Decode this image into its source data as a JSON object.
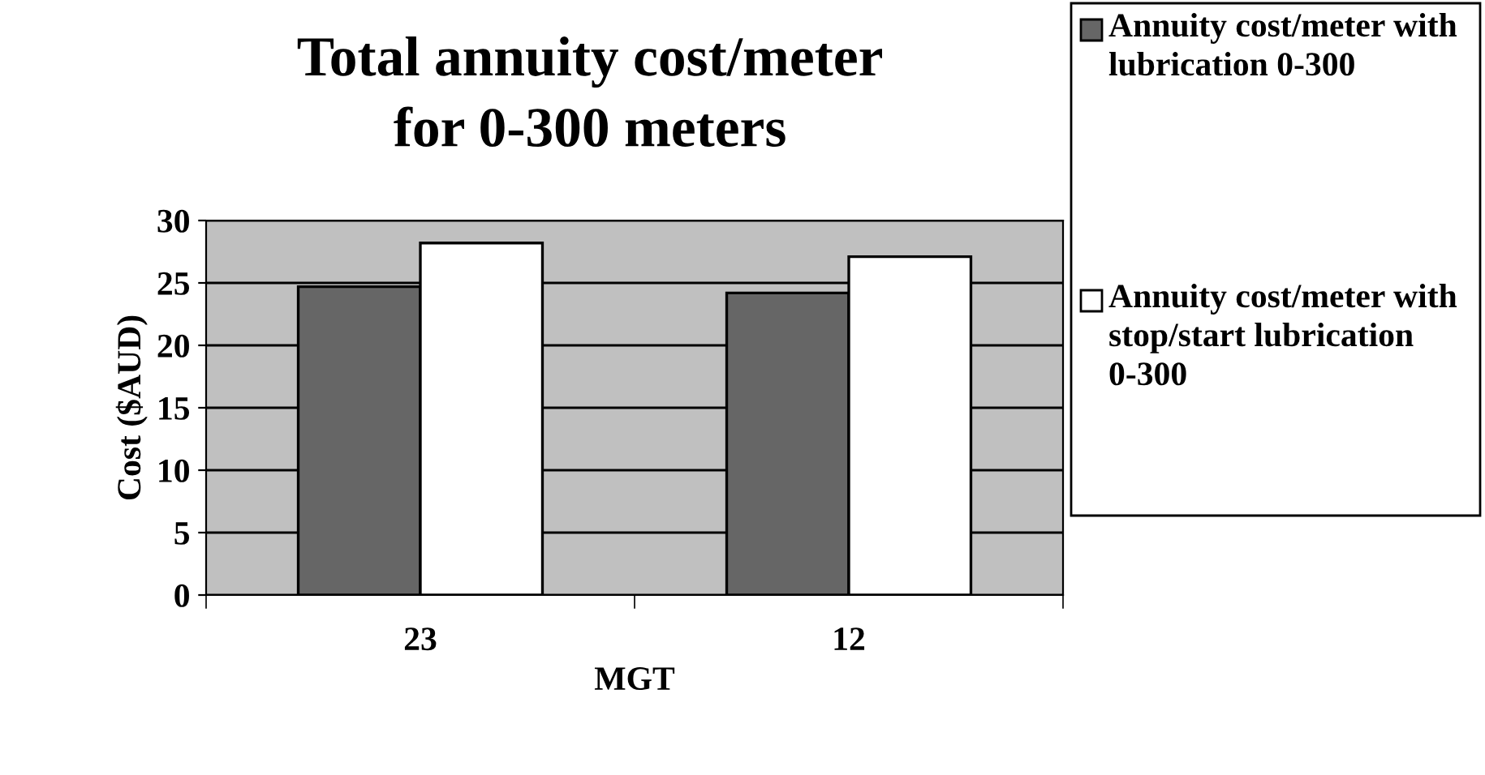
{
  "chart_data": {
    "type": "bar",
    "title": "Total annuity cost/meter\nfor 0-300 meters",
    "xlabel": "MGT",
    "ylabel": "Cost ($AUD)",
    "categories": [
      "23",
      "12"
    ],
    "series": [
      {
        "name": "Annuity cost/meter with lubrication 0-300",
        "color": "#666666",
        "values": [
          24.7,
          24.2
        ]
      },
      {
        "name": "Annuity cost/meter with stop/start lubrication 0-300",
        "color": "#ffffff",
        "values": [
          28.2,
          27.1
        ]
      }
    ],
    "ylim": [
      0,
      30
    ],
    "yticks": [
      0,
      5,
      10,
      15,
      20,
      25,
      30
    ],
    "grid": "y",
    "legend": "right"
  }
}
